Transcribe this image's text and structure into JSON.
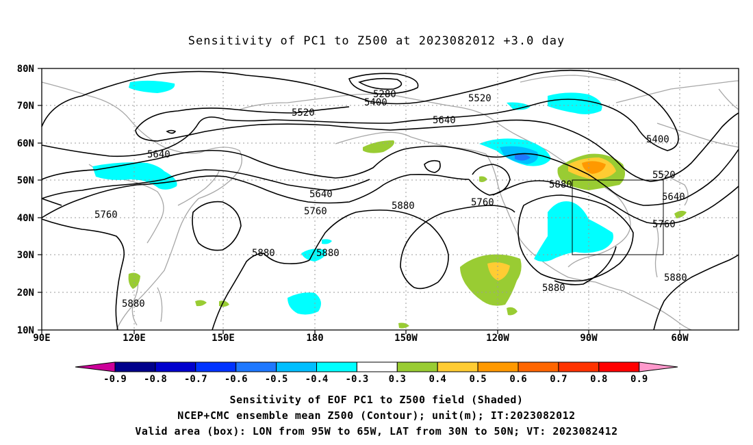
{
  "title": "Sensitivity of PC1 to Z500 at 2023082012 +3.0 day",
  "map": {
    "lat_ticks": [
      "80N",
      "70N",
      "60N",
      "50N",
      "40N",
      "30N",
      "20N",
      "10N"
    ],
    "lon_ticks": [
      "90E",
      "120E",
      "150E",
      "180",
      "150W",
      "120W",
      "90W",
      "60W"
    ],
    "contour_labels": [
      "5280",
      "5400",
      "5520",
      "5520",
      "5640",
      "5640",
      "5640",
      "5760",
      "5760",
      "5760",
      "5880",
      "5880",
      "5880",
      "5880",
      "5880",
      "5880",
      "5400",
      "5520",
      "5640",
      "5760",
      "5880"
    ],
    "valid_box": {
      "lon_from": "95W",
      "lon_to": "65W",
      "lat_from": "30N",
      "lat_to": "50N"
    }
  },
  "colorbar": {
    "labels": [
      "-0.9",
      "-0.8",
      "-0.7",
      "-0.6",
      "-0.5",
      "-0.4",
      "-0.3",
      "0.3",
      "0.4",
      "0.5",
      "0.6",
      "0.7",
      "0.8",
      "0.9"
    ],
    "colors": [
      "#cc0099",
      "#00008b",
      "#0000cd",
      "#0033ff",
      "#1e78ff",
      "#00bfff",
      "#00ffff",
      "#ffffff",
      "#99cc33",
      "#ffcc33",
      "#ff9900",
      "#ff6600",
      "#ff3300",
      "#ff0000",
      "#ff99cc"
    ]
  },
  "captions": {
    "line1": "Sensitivity of EOF PC1 to Z500 field (Shaded)",
    "line2": "NCEP+CMC ensemble mean Z500 (Contour); unit(m); IT:2023082012",
    "line3": "Valid area (box): LON from 95W to 65W, LAT from 30N to 50N; VT: 2023082412"
  }
}
